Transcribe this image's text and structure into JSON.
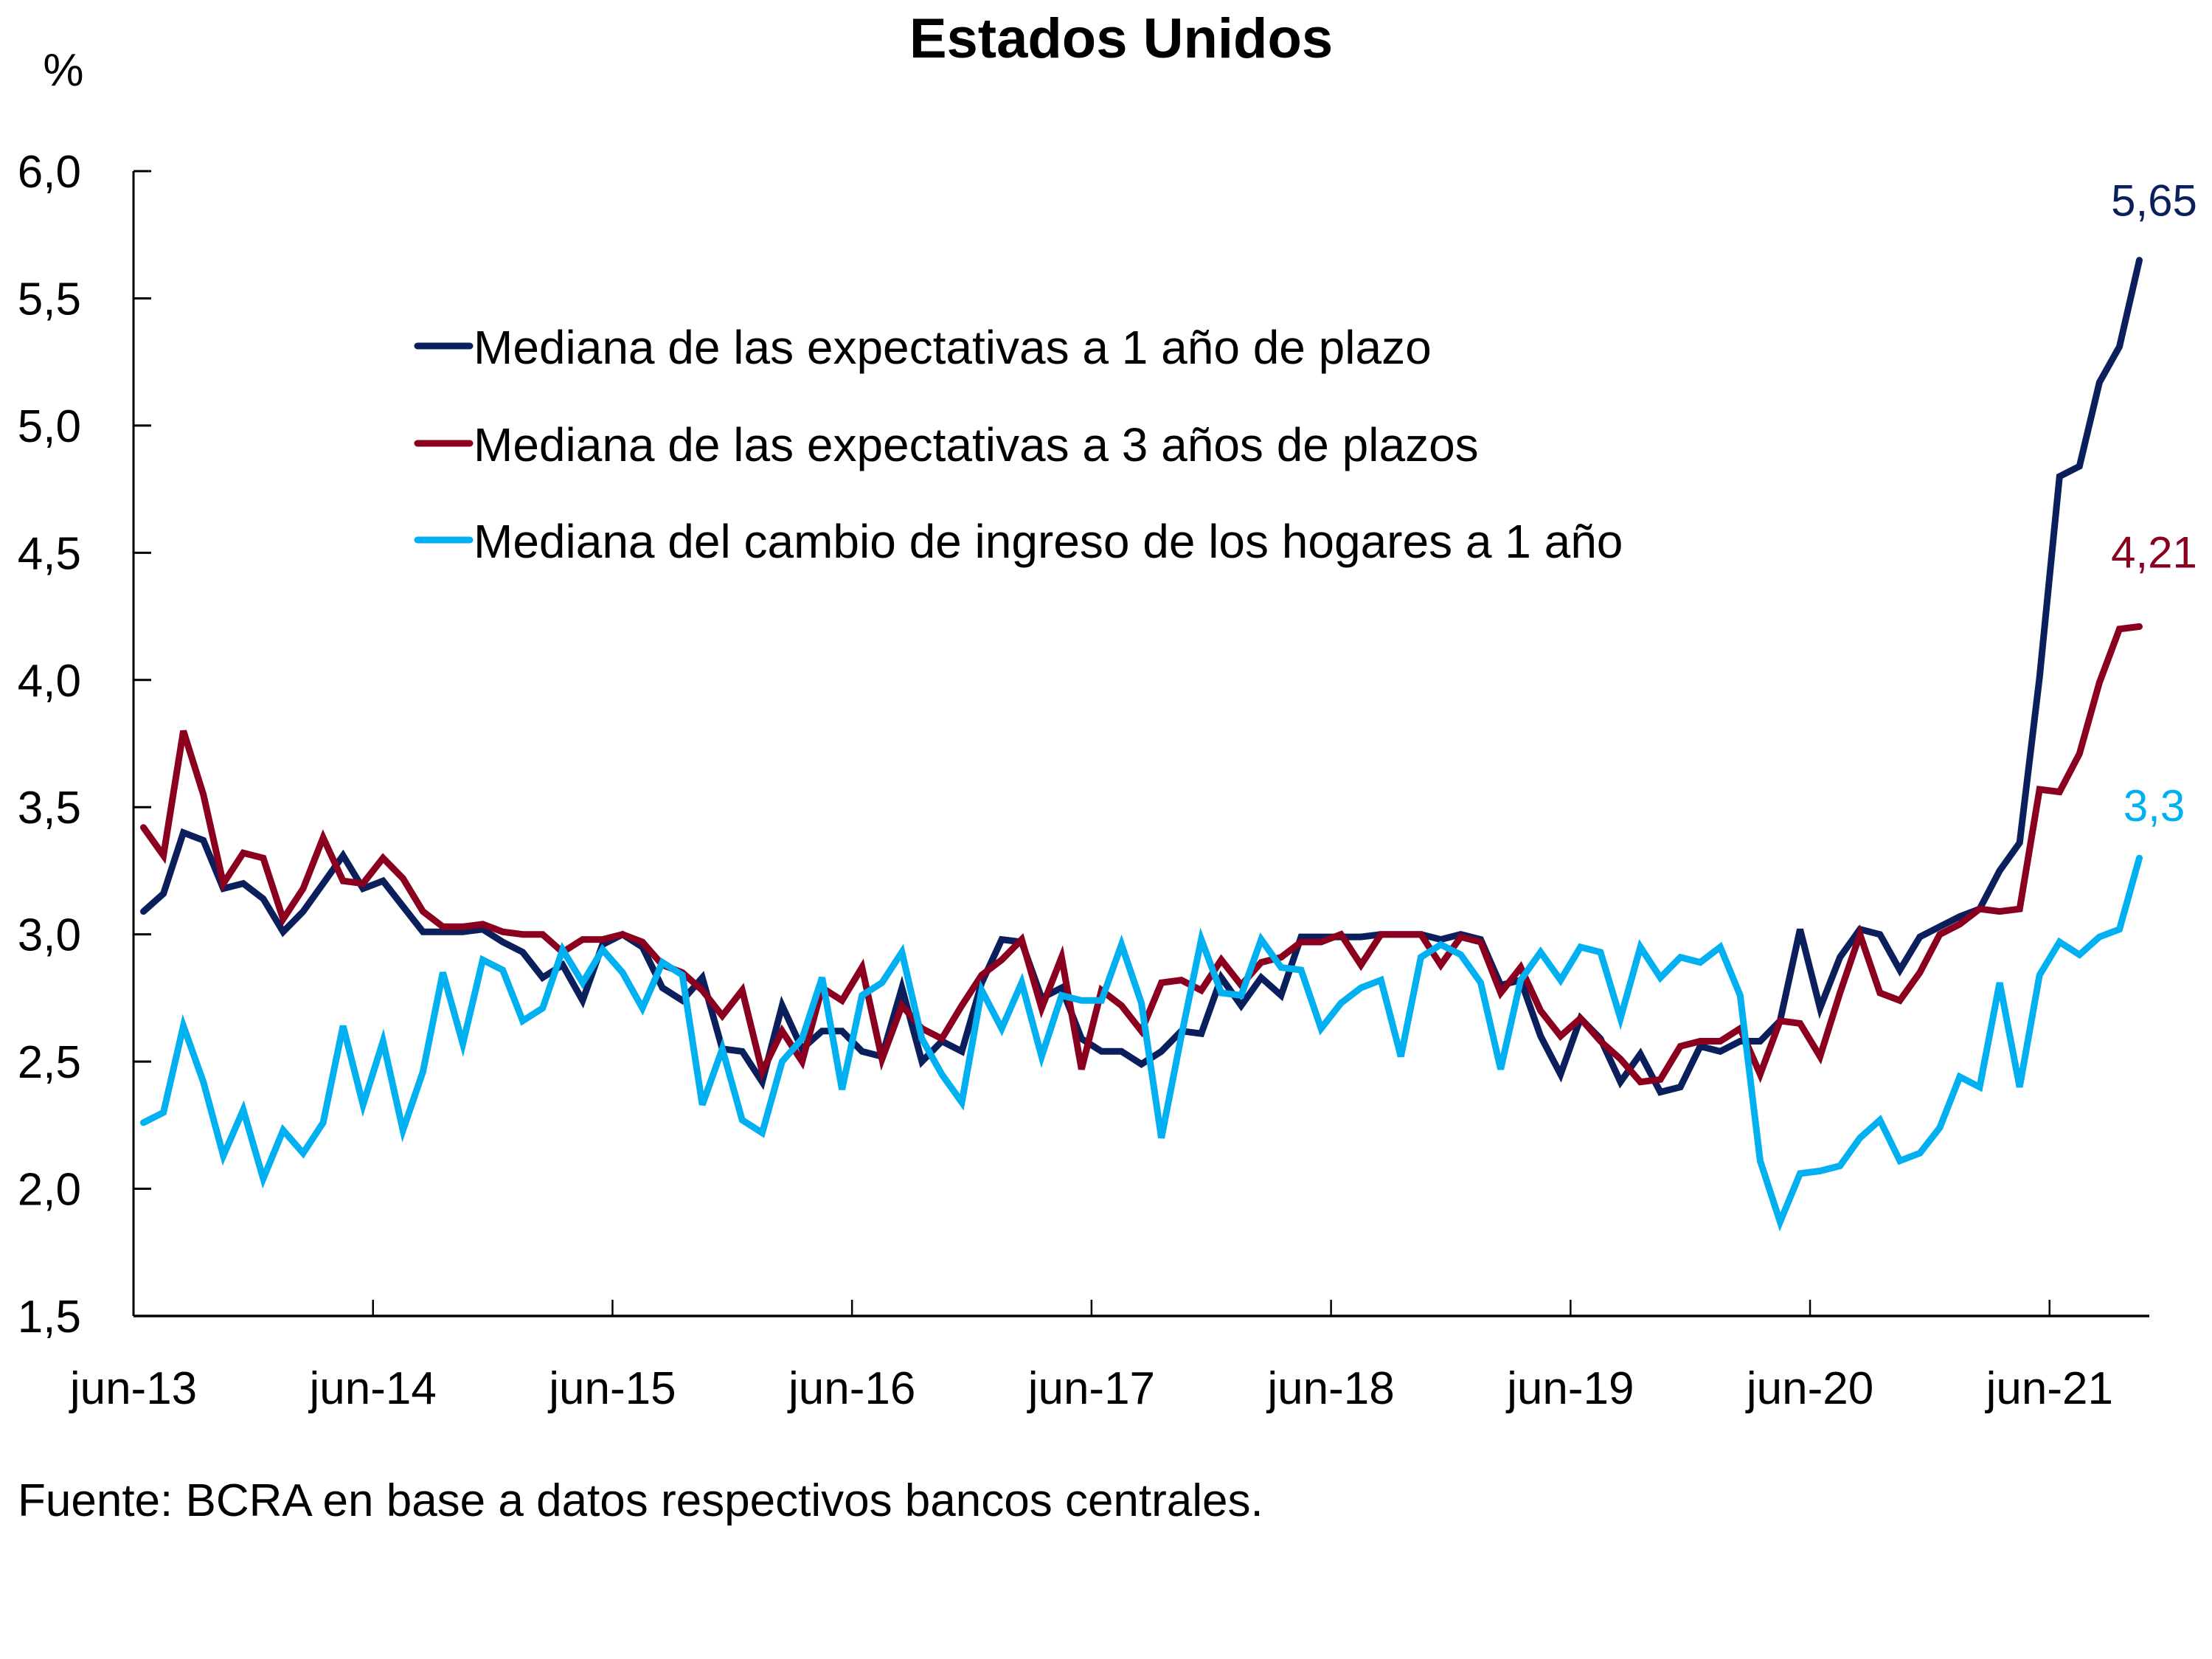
{
  "chart_data": {
    "type": "line",
    "title": "Estados Unidos",
    "ylabel": "%",
    "xlabel": "",
    "ylim": [
      1.5,
      6.0
    ],
    "yticks": [
      1.5,
      2.0,
      2.5,
      3.0,
      3.5,
      4.0,
      4.5,
      5.0,
      5.5,
      6.0
    ],
    "ytick_labels": [
      "1,5",
      "2,0",
      "2,5",
      "3,0",
      "3,5",
      "4,0",
      "4,5",
      "5,0",
      "5,5",
      "6,0"
    ],
    "grid": false,
    "x_start": "jun-13",
    "x_end": "oct-21",
    "x_frequency": "monthly",
    "xtick_labels": [
      "jun-13",
      "jun-14",
      "jun-15",
      "jun-16",
      "jun-17",
      "jun-18",
      "jun-19",
      "jun-20",
      "jun-21"
    ],
    "xtick_month_index": [
      0,
      12,
      24,
      36,
      48,
      60,
      72,
      84,
      96
    ],
    "legend_position": "top-center",
    "series": [
      {
        "name": "Mediana de las expectativas a 1 año de plazo",
        "color": "#0a1f5c",
        "end_label": "5,65",
        "values": [
          3.09,
          3.16,
          3.4,
          3.37,
          3.18,
          3.2,
          3.14,
          3.01,
          3.09,
          3.2,
          3.31,
          3.18,
          3.21,
          3.11,
          3.01,
          3.01,
          3.01,
          3.02,
          2.97,
          2.93,
          2.83,
          2.88,
          2.74,
          2.96,
          3.0,
          2.95,
          2.79,
          2.74,
          2.83,
          2.55,
          2.54,
          2.42,
          2.72,
          2.55,
          2.62,
          2.62,
          2.54,
          2.52,
          2.79,
          2.5,
          2.58,
          2.54,
          2.81,
          2.98,
          2.97,
          2.75,
          2.79,
          2.59,
          2.54,
          2.54,
          2.49,
          2.54,
          2.62,
          2.61,
          2.83,
          2.72,
          2.83,
          2.76,
          2.99,
          2.99,
          2.99,
          2.99,
          3.0,
          3.0,
          3.0,
          2.98,
          3.0,
          2.98,
          2.8,
          2.82,
          2.6,
          2.45,
          2.67,
          2.59,
          2.42,
          2.53,
          2.38,
          2.4,
          2.56,
          2.54,
          2.58,
          2.58,
          2.66,
          3.02,
          2.71,
          2.91,
          3.02,
          3.0,
          2.86,
          2.99,
          3.03,
          3.07,
          3.1,
          3.25,
          3.36,
          4.01,
          4.8,
          4.84,
          5.17,
          5.31,
          5.65
        ]
      },
      {
        "name": "Mediana de las expectativas a 3 años de plazos",
        "color": "#8b001e",
        "end_label": "4,21",
        "values": [
          3.42,
          3.31,
          3.8,
          3.55,
          3.2,
          3.32,
          3.3,
          3.06,
          3.18,
          3.38,
          3.21,
          3.2,
          3.3,
          3.22,
          3.09,
          3.03,
          3.03,
          3.04,
          3.01,
          3.0,
          3.0,
          2.93,
          2.98,
          2.98,
          3.0,
          2.97,
          2.88,
          2.85,
          2.78,
          2.68,
          2.78,
          2.46,
          2.62,
          2.5,
          2.79,
          2.74,
          2.87,
          2.51,
          2.72,
          2.63,
          2.59,
          2.72,
          2.84,
          2.9,
          2.98,
          2.71,
          2.91,
          2.47,
          2.78,
          2.72,
          2.62,
          2.81,
          2.82,
          2.78,
          2.9,
          2.8,
          2.89,
          2.91,
          2.97,
          2.97,
          3.0,
          2.88,
          3.0,
          3.0,
          3.0,
          2.88,
          2.99,
          2.97,
          2.77,
          2.87,
          2.7,
          2.6,
          2.67,
          2.58,
          2.51,
          2.42,
          2.43,
          2.56,
          2.58,
          2.58,
          2.63,
          2.45,
          2.66,
          2.65,
          2.52,
          2.77,
          3.0,
          2.77,
          2.74,
          2.85,
          3.0,
          3.04,
          3.1,
          3.09,
          3.1,
          3.57,
          3.56,
          3.71,
          3.99,
          4.2,
          4.21
        ]
      },
      {
        "name": "Mediana del cambio de ingreso de los hogares a 1 año",
        "color": "#00b0f0",
        "end_label": "3,3",
        "values": [
          2.26,
          2.3,
          2.64,
          2.42,
          2.13,
          2.31,
          2.04,
          2.23,
          2.14,
          2.26,
          2.64,
          2.33,
          2.58,
          2.23,
          2.46,
          2.85,
          2.57,
          2.9,
          2.86,
          2.66,
          2.71,
          2.94,
          2.81,
          2.94,
          2.85,
          2.71,
          2.89,
          2.84,
          2.33,
          2.55,
          2.27,
          2.22,
          2.5,
          2.59,
          2.83,
          2.39,
          2.76,
          2.81,
          2.93,
          2.59,
          2.45,
          2.34,
          2.78,
          2.63,
          2.81,
          2.52,
          2.76,
          2.74,
          2.74,
          2.96,
          2.73,
          2.2,
          2.6,
          2.98,
          2.77,
          2.76,
          2.98,
          2.87,
          2.86,
          2.63,
          2.73,
          2.79,
          2.82,
          2.52,
          2.91,
          2.96,
          2.92,
          2.81,
          2.47,
          2.82,
          2.93,
          2.82,
          2.95,
          2.93,
          2.67,
          2.95,
          2.83,
          2.91,
          2.89,
          2.95,
          2.76,
          2.11,
          1.87,
          2.06,
          2.07,
          2.09,
          2.2,
          2.27,
          2.11,
          2.14,
          2.24,
          2.44,
          2.4,
          2.81,
          2.4,
          2.84,
          2.97,
          2.92,
          2.99,
          3.02,
          3.3
        ]
      }
    ],
    "source_note": "Fuente: BCRA en base a datos respectivos bancos centrales."
  }
}
